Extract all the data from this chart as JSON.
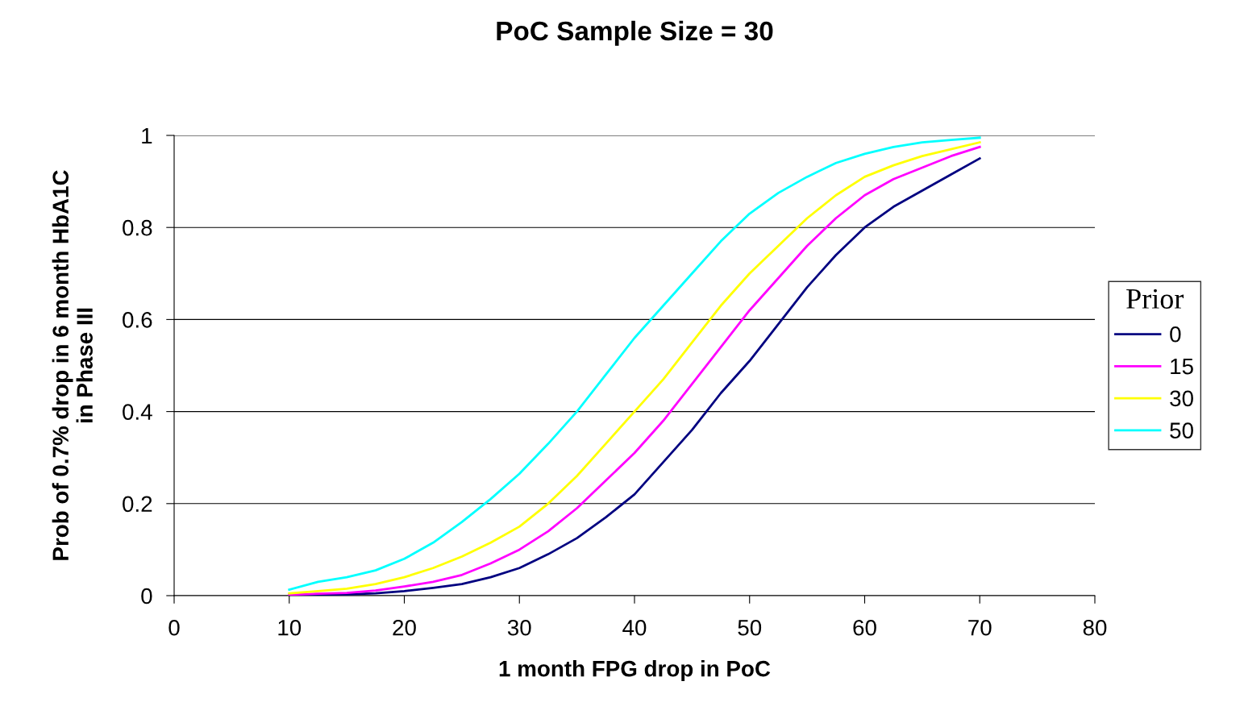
{
  "chart_data": {
    "type": "line",
    "title": "PoC Sample Size = 30",
    "xlabel": "1 month FPG drop in PoC",
    "ylabel": "Prob of 0.7% drop in 6 month HbA1C\nin Phase III",
    "legend_title": "Prior",
    "x": [
      10,
      12.5,
      15,
      17.5,
      20,
      22.5,
      25,
      27.5,
      30,
      32.5,
      35,
      37.5,
      40,
      42.5,
      45,
      47.5,
      50,
      52.5,
      55,
      57.5,
      60,
      62.5,
      65,
      67.5,
      70
    ],
    "series": [
      {
        "name": "0",
        "color": "#000080",
        "values": [
          0.0,
          0.002,
          0.003,
          0.005,
          0.01,
          0.017,
          0.025,
          0.04,
          0.06,
          0.09,
          0.125,
          0.17,
          0.22,
          0.29,
          0.36,
          0.44,
          0.51,
          0.59,
          0.67,
          0.74,
          0.8,
          0.845,
          0.88,
          0.915,
          0.95
        ]
      },
      {
        "name": "15",
        "color": "#ff00ff",
        "values": [
          0.002,
          0.004,
          0.006,
          0.011,
          0.02,
          0.03,
          0.045,
          0.07,
          0.1,
          0.14,
          0.19,
          0.25,
          0.31,
          0.38,
          0.46,
          0.54,
          0.62,
          0.69,
          0.76,
          0.82,
          0.87,
          0.905,
          0.93,
          0.955,
          0.975
        ]
      },
      {
        "name": "30",
        "color": "#ffff00",
        "values": [
          0.005,
          0.01,
          0.015,
          0.025,
          0.04,
          0.06,
          0.085,
          0.115,
          0.15,
          0.2,
          0.26,
          0.33,
          0.4,
          0.47,
          0.55,
          0.63,
          0.7,
          0.76,
          0.82,
          0.87,
          0.91,
          0.935,
          0.955,
          0.97,
          0.985
        ]
      },
      {
        "name": "50",
        "color": "#00ffff",
        "values": [
          0.013,
          0.03,
          0.04,
          0.055,
          0.08,
          0.115,
          0.16,
          0.21,
          0.265,
          0.33,
          0.4,
          0.48,
          0.56,
          0.63,
          0.7,
          0.77,
          0.83,
          0.875,
          0.91,
          0.94,
          0.96,
          0.975,
          0.985,
          0.99,
          0.995
        ]
      }
    ],
    "xlim": [
      0,
      80
    ],
    "xticks": [
      0,
      10,
      20,
      30,
      40,
      50,
      60,
      70,
      80
    ],
    "ylim": [
      0,
      1
    ],
    "yticks": [
      0,
      0.2,
      0.4,
      0.6,
      0.8,
      1
    ],
    "grid": "y",
    "legend": "right",
    "marker": "none",
    "line_style": "solid"
  }
}
